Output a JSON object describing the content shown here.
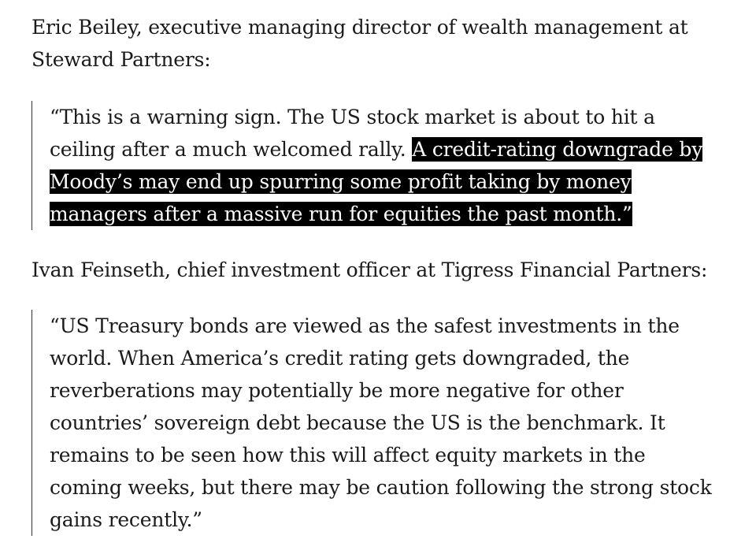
{
  "article": {
    "para1": {
      "attribution": "Eric Beiley, executive managing director of wealth management at Steward Partners:"
    },
    "quote1": {
      "text_plain": "“This is a warning sign. The US stock market is about to hit a ceiling after a much welcomed rally.",
      "text_highlighted": "A credit-rating downgrade by Moody’s may end up spurring some profit taking by money managers after a massive run for equities the past month.”"
    },
    "para2": {
      "attribution": "Ivan Feinseth, chief investment officer at Tigress Financial Partners:"
    },
    "quote2": {
      "text": "“US Treasury bonds are viewed as the safest investments in the world. When America’s credit rating gets downgraded, the reverberations may potentially be more negative for other countries’ sovereign debt because the US is the benchmark. It remains to be seen how this will affect equity markets in the coming weeks, but there may be caution following the strong stock gains recently.”"
    }
  }
}
